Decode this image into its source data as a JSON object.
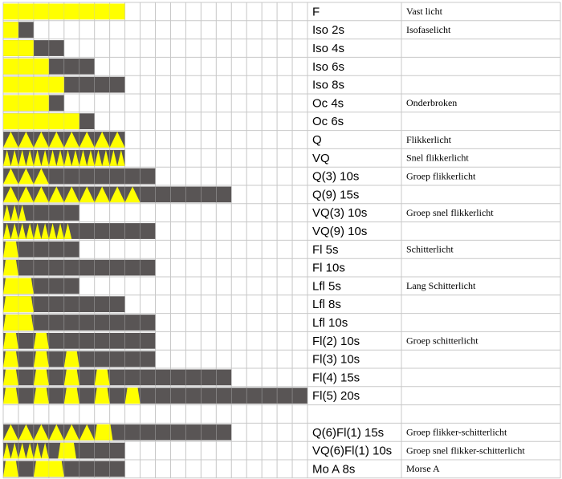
{
  "rows": [
    {
      "code": "F",
      "description": "Vast licht"
    },
    {
      "code": "Iso 2s",
      "description": "Isofaselicht"
    },
    {
      "code": "Iso 4s"
    },
    {
      "code": "Iso 6s"
    },
    {
      "code": "Iso 8s"
    },
    {
      "code": "Oc 4s",
      "description": "Onderbroken"
    },
    {
      "code": "Oc 6s"
    },
    {
      "code": "Q",
      "description": "Flikkerlicht"
    },
    {
      "code": "VQ",
      "description": "Snel flikkerlicht"
    },
    {
      "code": "Q(3) 10s",
      "description": "Groep flikkerlicht"
    },
    {
      "code": "Q(9) 15s"
    },
    {
      "code": "VQ(3) 10s",
      "description": "Groep snel flikkerlicht"
    },
    {
      "code": "VQ(9) 10s"
    },
    {
      "code": "Fl 5s",
      "description": "Schitterlicht"
    },
    {
      "code": "Fl 10s"
    },
    {
      "code": "Lfl 5s",
      "description": "Lang Schitterlicht"
    },
    {
      "code": "Lfl 8s"
    },
    {
      "code": "Lfl 10s"
    },
    {
      "code": "Fl(2) 10s",
      "description": "Groep schitterlicht"
    },
    {
      "code": "Fl(3) 10s"
    },
    {
      "code": "Fl(4) 15s"
    },
    {
      "code": "Fl(5) 20s"
    },
    null,
    {
      "code": "Q(6)Fl(1) 15s",
      "description": "Groep flikker-schitterlicht"
    },
    {
      "code": "VQ(6)Fl(1) 10s",
      "description": "Groep snel flikker-schitterlicht"
    },
    {
      "code": "Mo A 8s",
      "description": "Morse A"
    }
  ]
}
